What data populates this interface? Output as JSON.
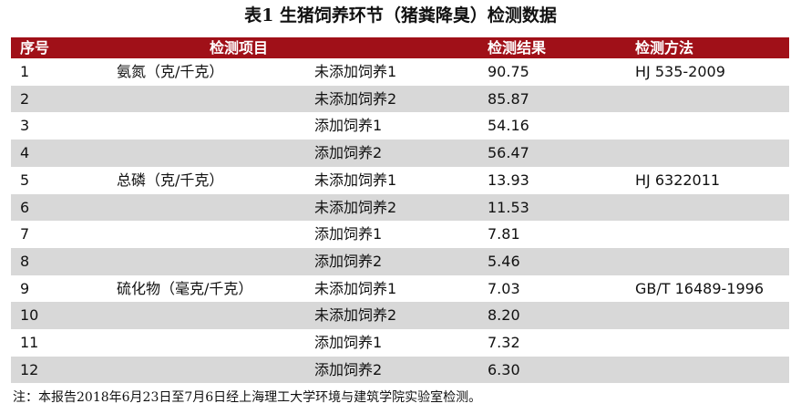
{
  "header": {
    "title": "表1 生猪饲养环节（猪粪降臭）检测数据"
  },
  "table": {
    "columns": [
      "序号",
      "检测项目",
      "检测结果",
      "检测方法"
    ],
    "rows": [
      {
        "no": "1",
        "item": "氨氮（克/千克）",
        "group": "未添加饲养1",
        "result": "90.75",
        "method": "HJ 535-2009"
      },
      {
        "no": "2",
        "group": "未添加饲养2",
        "result": "85.87"
      },
      {
        "no": "3",
        "group": "添加饲养1",
        "result": "54.16"
      },
      {
        "no": "4",
        "group": "添加饲养2",
        "result": "56.47"
      },
      {
        "no": "5",
        "item": "总磷（克/千克）",
        "group": "未添加饲养1",
        "result": "13.93",
        "method": "HJ 6322011"
      },
      {
        "no": "6",
        "group": "未添加饲养2",
        "result": "11.53"
      },
      {
        "no": "7",
        "group": "添加饲养1",
        "result": "7.81"
      },
      {
        "no": "8",
        "group": "添加饲养2",
        "result": "5.46"
      },
      {
        "no": "9",
        "item": "硫化物（毫克/千克）",
        "group": "未添加饲养1",
        "result": "7.03",
        "method": "GB/T 16489-1996"
      },
      {
        "no": "10",
        "group": "未添加饲养2",
        "result": "8.20"
      },
      {
        "no": "11",
        "group": "添加饲养1",
        "result": "7.32"
      },
      {
        "no": "12",
        "group": "添加饲养2",
        "result": "6.30"
      }
    ]
  },
  "note": "注：本报告2018年6月23日至7月6日经上海理工大学环境与建筑学院实验室检测。"
}
